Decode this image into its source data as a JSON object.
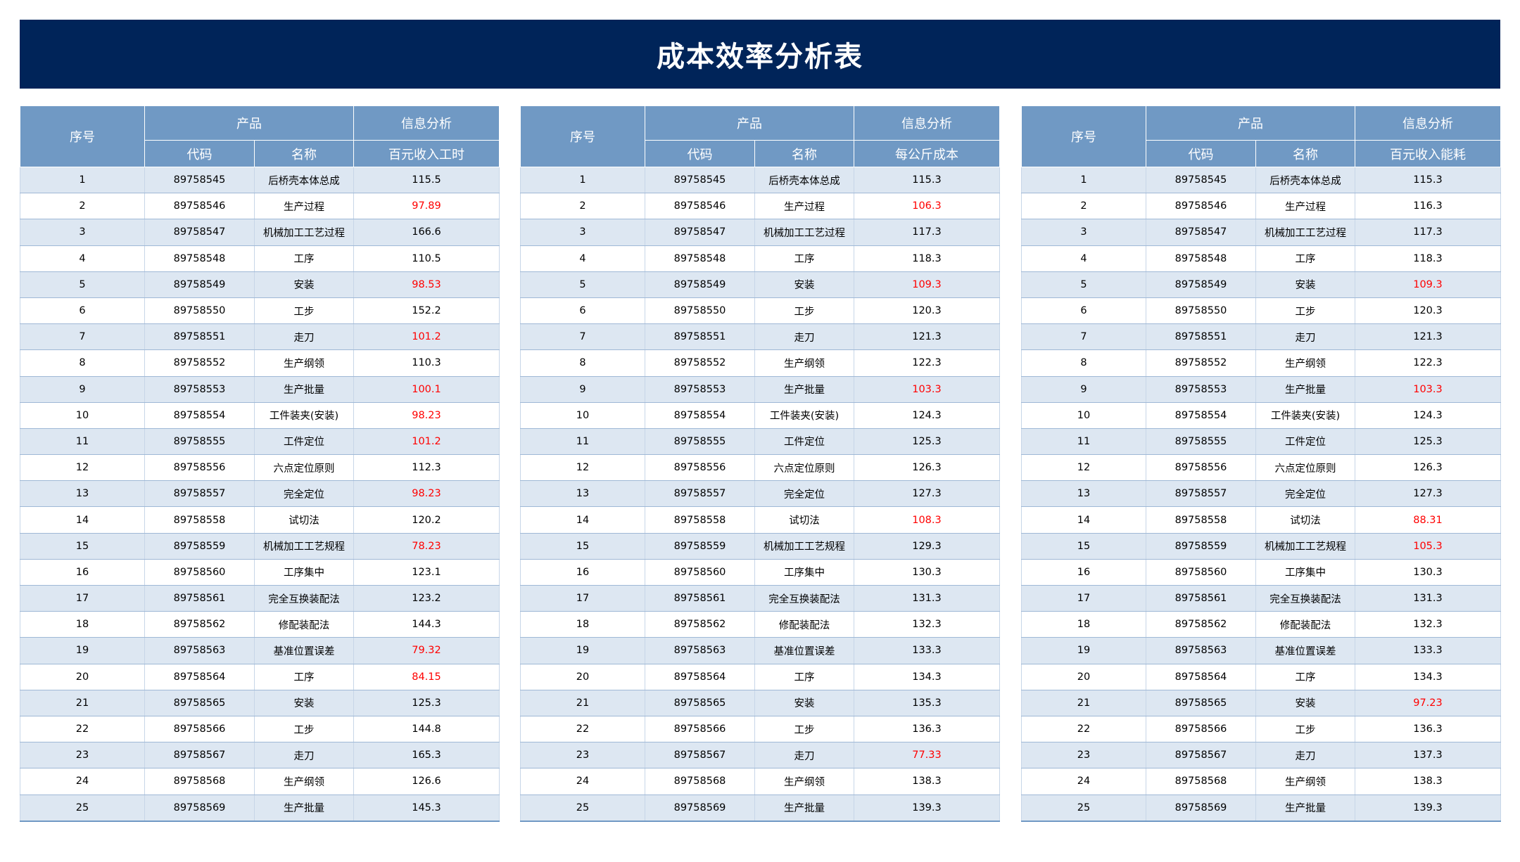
{
  "title": "成本效率分析表",
  "header": {
    "seq": "序号",
    "product": "产品",
    "info": "信息分析",
    "code": "代码",
    "name": "名称"
  },
  "tables": [
    {
      "metric": "百元收入工时",
      "rows": [
        {
          "seq": "1",
          "code": "89758545",
          "name": "后桥壳本体总成",
          "value": "115.5",
          "red": false
        },
        {
          "seq": "2",
          "code": "89758546",
          "name": "生产过程",
          "value": "97.89",
          "red": true
        },
        {
          "seq": "3",
          "code": "89758547",
          "name": "机械加工工艺过程",
          "value": "166.6",
          "red": false
        },
        {
          "seq": "4",
          "code": "89758548",
          "name": "工序",
          "value": "110.5",
          "red": false
        },
        {
          "seq": "5",
          "code": "89758549",
          "name": "安装",
          "value": "98.53",
          "red": true
        },
        {
          "seq": "6",
          "code": "89758550",
          "name": "工步",
          "value": "152.2",
          "red": false
        },
        {
          "seq": "7",
          "code": "89758551",
          "name": "走刀",
          "value": "101.2",
          "red": true
        },
        {
          "seq": "8",
          "code": "89758552",
          "name": "生产纲领",
          "value": "110.3",
          "red": false
        },
        {
          "seq": "9",
          "code": "89758553",
          "name": "生产批量",
          "value": "100.1",
          "red": true
        },
        {
          "seq": "10",
          "code": "89758554",
          "name": "工件装夹(安装)",
          "value": "98.23",
          "red": true
        },
        {
          "seq": "11",
          "code": "89758555",
          "name": "工件定位",
          "value": "101.2",
          "red": true
        },
        {
          "seq": "12",
          "code": "89758556",
          "name": "六点定位原则",
          "value": "112.3",
          "red": false
        },
        {
          "seq": "13",
          "code": "89758557",
          "name": "完全定位",
          "value": "98.23",
          "red": true
        },
        {
          "seq": "14",
          "code": "89758558",
          "name": "试切法",
          "value": "120.2",
          "red": false
        },
        {
          "seq": "15",
          "code": "89758559",
          "name": "机械加工工艺规程",
          "value": "78.23",
          "red": true
        },
        {
          "seq": "16",
          "code": "89758560",
          "name": "工序集中",
          "value": "123.1",
          "red": false
        },
        {
          "seq": "17",
          "code": "89758561",
          "name": "完全互换装配法",
          "value": "123.2",
          "red": false
        },
        {
          "seq": "18",
          "code": "89758562",
          "name": "修配装配法",
          "value": "144.3",
          "red": false
        },
        {
          "seq": "19",
          "code": "89758563",
          "name": "基准位置误差",
          "value": "79.32",
          "red": true
        },
        {
          "seq": "20",
          "code": "89758564",
          "name": "工序",
          "value": "84.15",
          "red": true
        },
        {
          "seq": "21",
          "code": "89758565",
          "name": "安装",
          "value": "125.3",
          "red": false
        },
        {
          "seq": "22",
          "code": "89758566",
          "name": "工步",
          "value": "144.8",
          "red": false
        },
        {
          "seq": "23",
          "code": "89758567",
          "name": "走刀",
          "value": "165.3",
          "red": false
        },
        {
          "seq": "24",
          "code": "89758568",
          "name": "生产纲领",
          "value": "126.6",
          "red": false
        },
        {
          "seq": "25",
          "code": "89758569",
          "name": "生产批量",
          "value": "145.3",
          "red": false
        }
      ]
    },
    {
      "metric": "每公斤成本",
      "rows": [
        {
          "seq": "1",
          "code": "89758545",
          "name": "后桥壳本体总成",
          "value": "115.3",
          "red": false
        },
        {
          "seq": "2",
          "code": "89758546",
          "name": "生产过程",
          "value": "106.3",
          "red": true
        },
        {
          "seq": "3",
          "code": "89758547",
          "name": "机械加工工艺过程",
          "value": "117.3",
          "red": false
        },
        {
          "seq": "4",
          "code": "89758548",
          "name": "工序",
          "value": "118.3",
          "red": false
        },
        {
          "seq": "5",
          "code": "89758549",
          "name": "安装",
          "value": "109.3",
          "red": true
        },
        {
          "seq": "6",
          "code": "89758550",
          "name": "工步",
          "value": "120.3",
          "red": false
        },
        {
          "seq": "7",
          "code": "89758551",
          "name": "走刀",
          "value": "121.3",
          "red": false
        },
        {
          "seq": "8",
          "code": "89758552",
          "name": "生产纲领",
          "value": "122.3",
          "red": false
        },
        {
          "seq": "9",
          "code": "89758553",
          "name": "生产批量",
          "value": "103.3",
          "red": true
        },
        {
          "seq": "10",
          "code": "89758554",
          "name": "工件装夹(安装)",
          "value": "124.3",
          "red": false
        },
        {
          "seq": "11",
          "code": "89758555",
          "name": "工件定位",
          "value": "125.3",
          "red": false
        },
        {
          "seq": "12",
          "code": "89758556",
          "name": "六点定位原则",
          "value": "126.3",
          "red": false
        },
        {
          "seq": "13",
          "code": "89758557",
          "name": "完全定位",
          "value": "127.3",
          "red": false
        },
        {
          "seq": "14",
          "code": "89758558",
          "name": "试切法",
          "value": "108.3",
          "red": true
        },
        {
          "seq": "15",
          "code": "89758559",
          "name": "机械加工工艺规程",
          "value": "129.3",
          "red": false
        },
        {
          "seq": "16",
          "code": "89758560",
          "name": "工序集中",
          "value": "130.3",
          "red": false
        },
        {
          "seq": "17",
          "code": "89758561",
          "name": "完全互换装配法",
          "value": "131.3",
          "red": false
        },
        {
          "seq": "18",
          "code": "89758562",
          "name": "修配装配法",
          "value": "132.3",
          "red": false
        },
        {
          "seq": "19",
          "code": "89758563",
          "name": "基准位置误差",
          "value": "133.3",
          "red": false
        },
        {
          "seq": "20",
          "code": "89758564",
          "name": "工序",
          "value": "134.3",
          "red": false
        },
        {
          "seq": "21",
          "code": "89758565",
          "name": "安装",
          "value": "135.3",
          "red": false
        },
        {
          "seq": "22",
          "code": "89758566",
          "name": "工步",
          "value": "136.3",
          "red": false
        },
        {
          "seq": "23",
          "code": "89758567",
          "name": "走刀",
          "value": "77.33",
          "red": true
        },
        {
          "seq": "24",
          "code": "89758568",
          "name": "生产纲领",
          "value": "138.3",
          "red": false
        },
        {
          "seq": "25",
          "code": "89758569",
          "name": "生产批量",
          "value": "139.3",
          "red": false
        }
      ]
    },
    {
      "metric": "百元收入能耗",
      "rows": [
        {
          "seq": "1",
          "code": "89758545",
          "name": "后桥壳本体总成",
          "value": "115.3",
          "red": false
        },
        {
          "seq": "2",
          "code": "89758546",
          "name": "生产过程",
          "value": "116.3",
          "red": false
        },
        {
          "seq": "3",
          "code": "89758547",
          "name": "机械加工工艺过程",
          "value": "117.3",
          "red": false
        },
        {
          "seq": "4",
          "code": "89758548",
          "name": "工序",
          "value": "118.3",
          "red": false
        },
        {
          "seq": "5",
          "code": "89758549",
          "name": "安装",
          "value": "109.3",
          "red": true
        },
        {
          "seq": "6",
          "code": "89758550",
          "name": "工步",
          "value": "120.3",
          "red": false
        },
        {
          "seq": "7",
          "code": "89758551",
          "name": "走刀",
          "value": "121.3",
          "red": false
        },
        {
          "seq": "8",
          "code": "89758552",
          "name": "生产纲领",
          "value": "122.3",
          "red": false
        },
        {
          "seq": "9",
          "code": "89758553",
          "name": "生产批量",
          "value": "103.3",
          "red": true
        },
        {
          "seq": "10",
          "code": "89758554",
          "name": "工件装夹(安装)",
          "value": "124.3",
          "red": false
        },
        {
          "seq": "11",
          "code": "89758555",
          "name": "工件定位",
          "value": "125.3",
          "red": false
        },
        {
          "seq": "12",
          "code": "89758556",
          "name": "六点定位原则",
          "value": "126.3",
          "red": false
        },
        {
          "seq": "13",
          "code": "89758557",
          "name": "完全定位",
          "value": "127.3",
          "red": false
        },
        {
          "seq": "14",
          "code": "89758558",
          "name": "试切法",
          "value": "88.31",
          "red": true
        },
        {
          "seq": "15",
          "code": "89758559",
          "name": "机械加工工艺规程",
          "value": "105.3",
          "red": true
        },
        {
          "seq": "16",
          "code": "89758560",
          "name": "工序集中",
          "value": "130.3",
          "red": false
        },
        {
          "seq": "17",
          "code": "89758561",
          "name": "完全互换装配法",
          "value": "131.3",
          "red": false
        },
        {
          "seq": "18",
          "code": "89758562",
          "name": "修配装配法",
          "value": "132.3",
          "red": false
        },
        {
          "seq": "19",
          "code": "89758563",
          "name": "基准位置误差",
          "value": "133.3",
          "red": false
        },
        {
          "seq": "20",
          "code": "89758564",
          "name": "工序",
          "value": "134.3",
          "red": false
        },
        {
          "seq": "21",
          "code": "89758565",
          "name": "安装",
          "value": "97.23",
          "red": true
        },
        {
          "seq": "22",
          "code": "89758566",
          "name": "工步",
          "value": "136.3",
          "red": false
        },
        {
          "seq": "23",
          "code": "89758567",
          "name": "走刀",
          "value": "137.3",
          "red": false
        },
        {
          "seq": "24",
          "code": "89758568",
          "name": "生产纲领",
          "value": "138.3",
          "red": false
        },
        {
          "seq": "25",
          "code": "89758569",
          "name": "生产批量",
          "value": "139.3",
          "red": false
        }
      ]
    }
  ]
}
